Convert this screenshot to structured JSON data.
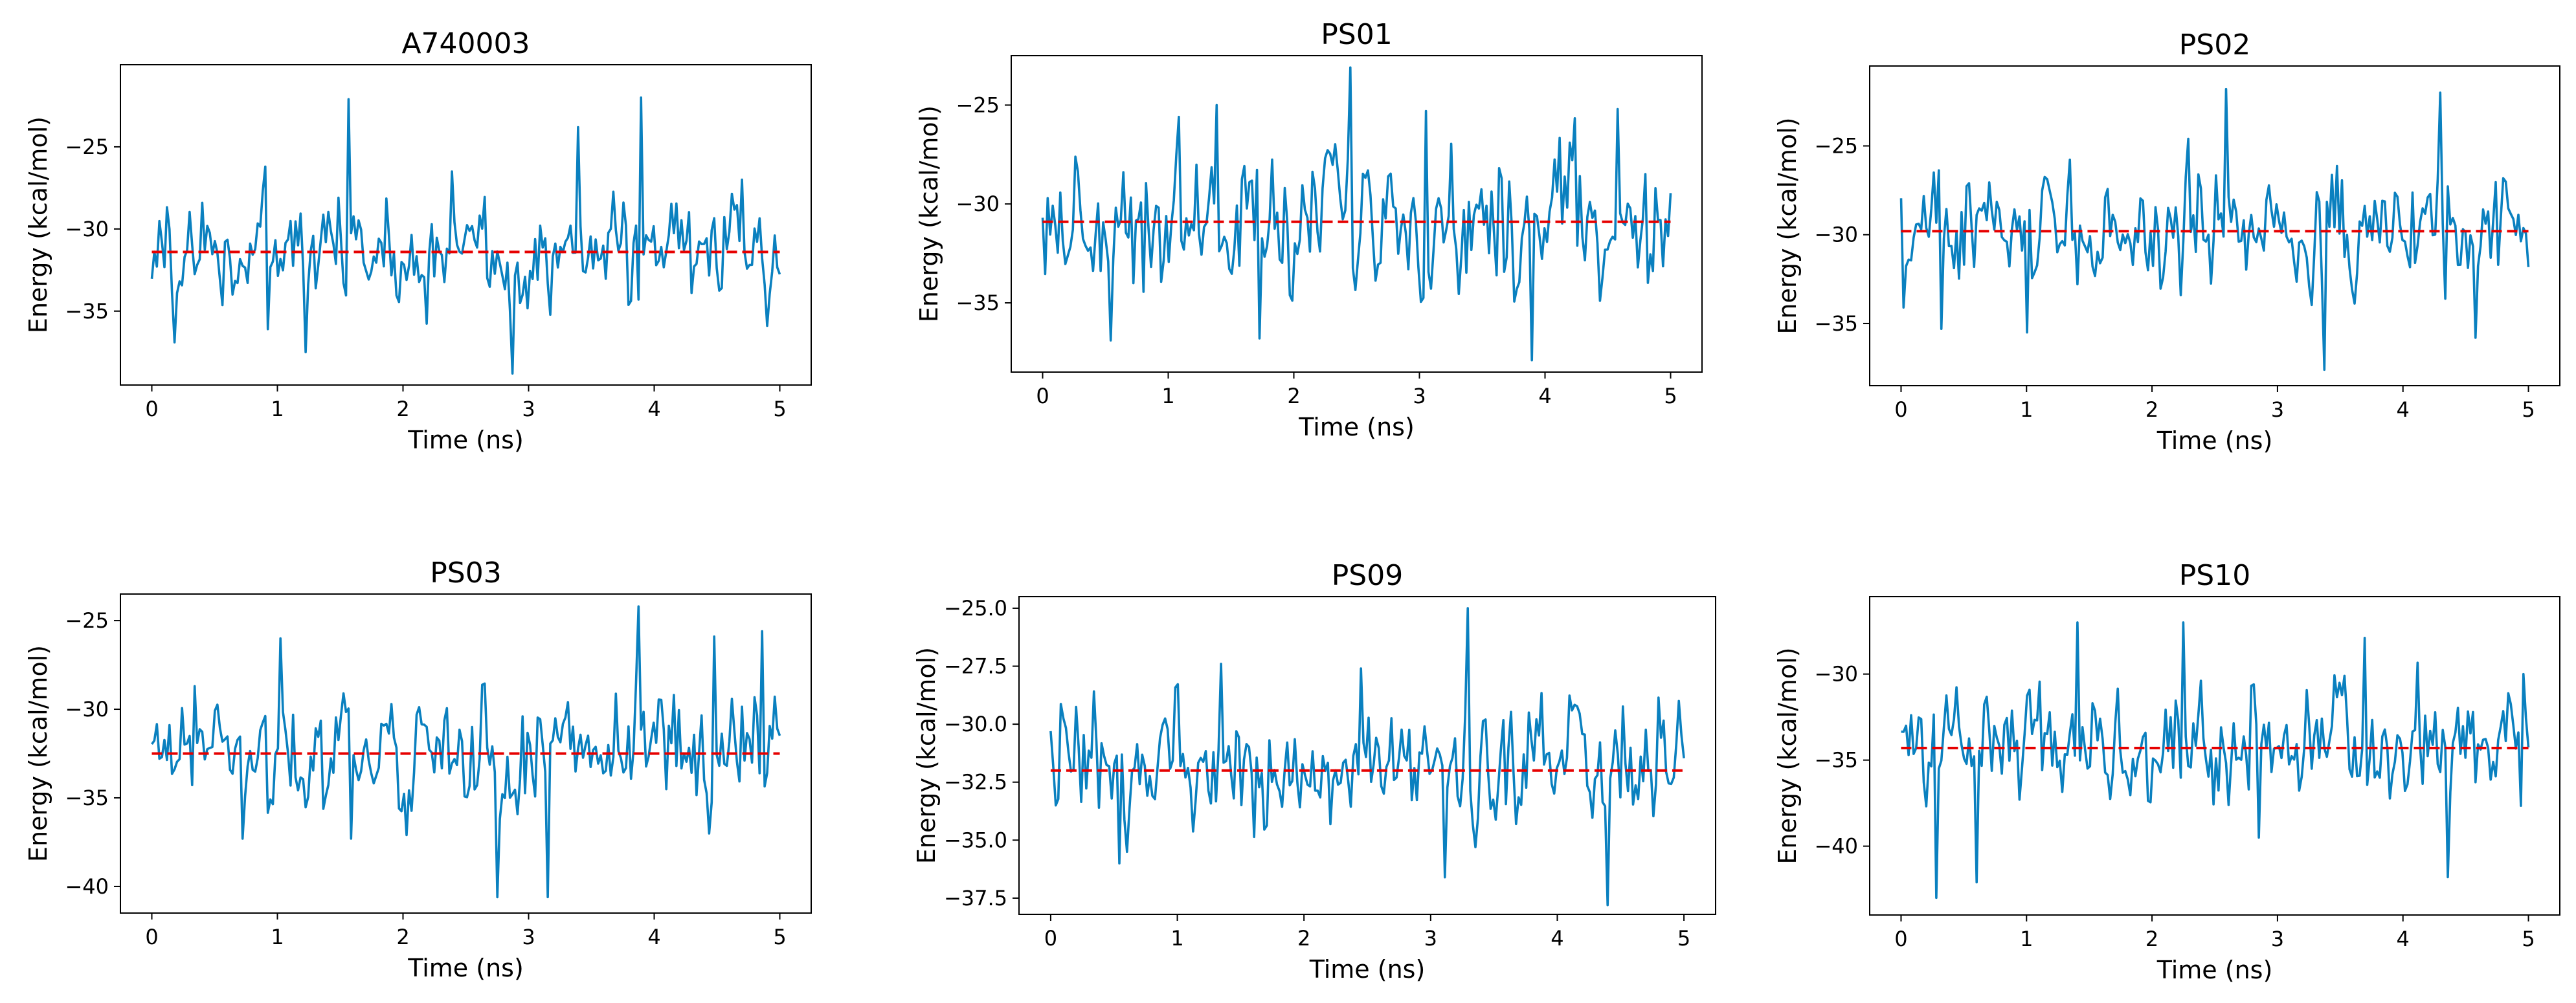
{
  "chart_data": [
    {
      "type": "line",
      "title": "A740003",
      "xlabel": "Time (ns)",
      "ylabel": "Energy (kcal/mol)",
      "xlim": [
        -0.25,
        5.25
      ],
      "ylim": [
        -39.5,
        -20.0
      ],
      "xticks": [
        0,
        1,
        2,
        3,
        4,
        5
      ],
      "yticks": [
        -35,
        -30,
        -25
      ],
      "ytick_labels": [
        "−35",
        "−30",
        "−25"
      ],
      "mean": -31.4,
      "series": [
        {
          "name": "energy",
          "x_start": 0,
          "x_end": 5,
          "n_points": 250,
          "baseline": -31.4,
          "noise": 2.2,
          "extremes": [
            [
              0.18,
              -36.9
            ],
            [
              0.92,
              -36.1
            ],
            [
              1.23,
              -37.5
            ],
            [
              1.56,
              -22.1
            ],
            [
              2.38,
              -26.5
            ],
            [
              2.87,
              -38.8
            ],
            [
              3.4,
              -23.8
            ],
            [
              3.9,
              -22.0
            ],
            [
              4.7,
              -27.0
            ]
          ]
        }
      ],
      "colors": {
        "series": "#0a80bf",
        "mean": "#e60000"
      }
    },
    {
      "type": "line",
      "title": "PS01",
      "xlabel": "Time (ns)",
      "ylabel": "Energy (kcal/mol)",
      "xlim": [
        -0.25,
        5.25
      ],
      "ylim": [
        -38.5,
        -22.5
      ],
      "xticks": [
        0,
        1,
        2,
        3,
        4,
        5
      ],
      "yticks": [
        -35,
        -30,
        -25
      ],
      "ytick_labels": [
        "−35",
        "−30",
        "−25"
      ],
      "mean": -30.9,
      "series": [
        {
          "name": "energy",
          "x_start": 0,
          "x_end": 5,
          "n_points": 250,
          "baseline": -30.9,
          "noise": 2.2,
          "extremes": [
            [
              0.55,
              -36.9
            ],
            [
              1.08,
              -25.6
            ],
            [
              1.39,
              -25.0
            ],
            [
              1.72,
              -36.8
            ],
            [
              2.45,
              -23.1
            ],
            [
              3.05,
              -25.3
            ],
            [
              3.9,
              -37.9
            ],
            [
              4.58,
              -25.2
            ]
          ]
        }
      ],
      "colors": {
        "series": "#0a80bf",
        "mean": "#e60000"
      }
    },
    {
      "type": "line",
      "title": "PS02",
      "xlabel": "Time (ns)",
      "ylabel": "Energy (kcal/mol)",
      "xlim": [
        -0.25,
        5.25
      ],
      "ylim": [
        -38.5,
        -20.5
      ],
      "xticks": [
        0,
        1,
        2,
        3,
        4,
        5
      ],
      "yticks": [
        -35,
        -30,
        -25
      ],
      "ytick_labels": [
        "−35",
        "−30",
        "−25"
      ],
      "mean": -29.8,
      "series": [
        {
          "name": "energy",
          "x_start": 0,
          "x_end": 5,
          "n_points": 250,
          "baseline": -29.8,
          "noise": 2.0,
          "extremes": [
            [
              0.02,
              -34.1
            ],
            [
              0.33,
              -35.3
            ],
            [
              1.0,
              -35.5
            ],
            [
              2.28,
              -24.6
            ],
            [
              2.6,
              -21.8
            ],
            [
              3.38,
              -37.6
            ],
            [
              4.3,
              -22.0
            ],
            [
              4.57,
              -35.8
            ]
          ]
        }
      ],
      "colors": {
        "series": "#0a80bf",
        "mean": "#e60000"
      }
    },
    {
      "type": "line",
      "title": "PS03",
      "xlabel": "Time (ns)",
      "ylabel": "Energy (kcal/mol)",
      "xlim": [
        -0.25,
        5.25
      ],
      "ylim": [
        -41.5,
        -23.5
      ],
      "xticks": [
        0,
        1,
        2,
        3,
        4,
        5
      ],
      "yticks": [
        -40,
        -35,
        -30,
        -25
      ],
      "ytick_labels": [
        "−40",
        "−35",
        "−30",
        "−25"
      ],
      "mean": -32.5,
      "series": [
        {
          "name": "energy",
          "x_start": 0,
          "x_end": 5,
          "n_points": 250,
          "baseline": -32.5,
          "noise": 2.0,
          "extremes": [
            [
              0.35,
              -28.7
            ],
            [
              0.72,
              -37.3
            ],
            [
              1.02,
              -26.0
            ],
            [
              1.58,
              -37.3
            ],
            [
              2.75,
              -40.6
            ],
            [
              3.15,
              -40.6
            ],
            [
              3.87,
              -24.2
            ],
            [
              4.48,
              -25.9
            ],
            [
              4.85,
              -25.6
            ]
          ]
        }
      ],
      "colors": {
        "series": "#0a80bf",
        "mean": "#e60000"
      }
    },
    {
      "type": "line",
      "title": "PS09",
      "xlabel": "Time (ns)",
      "ylabel": "Energy (kcal/mol)",
      "xlim": [
        -0.25,
        5.25
      ],
      "ylim": [
        -38.2,
        -24.5
      ],
      "xticks": [
        0,
        1,
        2,
        3,
        4,
        5
      ],
      "yticks": [
        -37.5,
        -35.0,
        -32.5,
        -30.0,
        -27.5,
        -25.0
      ],
      "ytick_labels": [
        "−37.5",
        "−35.0",
        "−32.5",
        "−30.0",
        "−27.5",
        "−25.0"
      ],
      "mean": -32.0,
      "series": [
        {
          "name": "energy",
          "x_start": 0,
          "x_end": 5,
          "n_points": 250,
          "baseline": -32.0,
          "noise": 1.7,
          "extremes": [
            [
              0.0,
              -30.3
            ],
            [
              0.55,
              -36.0
            ],
            [
              1.35,
              -27.4
            ],
            [
              2.45,
              -27.6
            ],
            [
              3.12,
              -36.6
            ],
            [
              3.3,
              -25.0
            ],
            [
              4.4,
              -37.8
            ],
            [
              4.95,
              -29.0
            ]
          ]
        }
      ],
      "colors": {
        "series": "#0a80bf",
        "mean": "#e60000"
      }
    },
    {
      "type": "line",
      "title": "PS10",
      "xlabel": "Time (ns)",
      "ylabel": "Energy (kcal/mol)",
      "xlim": [
        -0.25,
        5.25
      ],
      "ylim": [
        -44.0,
        -25.5
      ],
      "xticks": [
        0,
        1,
        2,
        3,
        4,
        5
      ],
      "yticks": [
        -40,
        -35,
        -30
      ],
      "ytick_labels": [
        "−40",
        "−35",
        "−30"
      ],
      "mean": -34.3,
      "series": [
        {
          "name": "energy",
          "x_start": 0,
          "x_end": 5,
          "n_points": 250,
          "baseline": -34.3,
          "noise": 2.2,
          "extremes": [
            [
              0.28,
              -43.0
            ],
            [
              0.6,
              -42.1
            ],
            [
              1.4,
              -27.0
            ],
            [
              2.25,
              -27.0
            ],
            [
              2.85,
              -39.5
            ],
            [
              3.7,
              -27.9
            ],
            [
              4.35,
              -41.8
            ],
            [
              4.95,
              -30.0
            ]
          ]
        }
      ],
      "colors": {
        "series": "#0a80bf",
        "mean": "#e60000"
      }
    }
  ]
}
